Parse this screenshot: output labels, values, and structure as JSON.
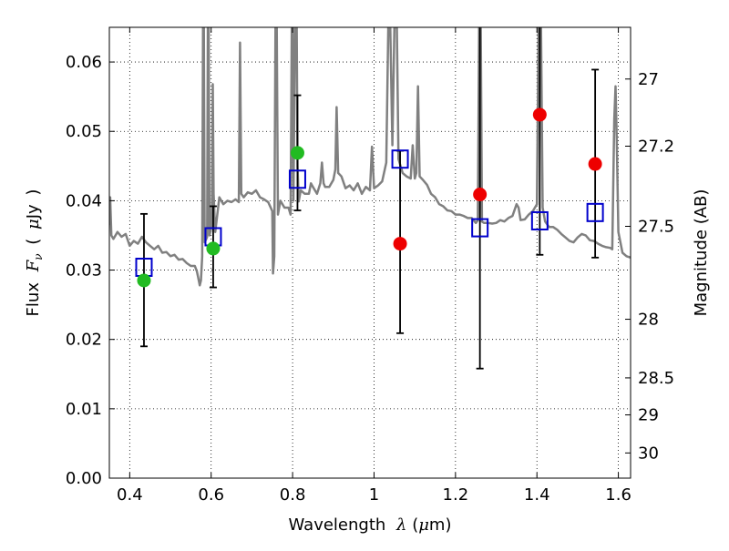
{
  "chart_data": {
    "type": "scatter",
    "x_axis": {
      "label_parts": [
        "Wavelength",
        "λ",
        "(",
        "μ",
        "m)"
      ],
      "lim": [
        0.35,
        1.63
      ],
      "ticks": [
        0.4,
        0.6,
        0.8,
        1.0,
        1.2,
        1.4,
        1.6
      ],
      "tick_labels": [
        "0.4",
        "0.6",
        "0.8",
        "1",
        "1.2",
        "1.4",
        "1.6"
      ]
    },
    "y_axis": {
      "label_parts": [
        "Flux",
        "F",
        "ν",
        "(",
        "μ",
        "Jy",
        ")"
      ],
      "lim": [
        0.0,
        0.065
      ],
      "ticks": [
        0.0,
        0.01,
        0.02,
        0.03,
        0.04,
        0.05,
        0.06
      ],
      "tick_labels": [
        "0.00",
        "0.01",
        "0.02",
        "0.03",
        "0.04",
        "0.05",
        "0.06"
      ]
    },
    "y2_axis": {
      "label": "Magnitude (AB)",
      "ticks": [
        {
          "mag": 27,
          "label": "27"
        },
        {
          "mag": 27.2,
          "label": "27.2"
        },
        {
          "mag": 27.5,
          "label": "27.5"
        },
        {
          "mag": 28,
          "label": "28"
        },
        {
          "mag": 28.5,
          "label": "28.5"
        },
        {
          "mag": 29,
          "label": "29"
        },
        {
          "mag": 30,
          "label": "30"
        }
      ]
    },
    "grid": true,
    "series": [
      {
        "marker": "circle",
        "color": "#22bb22",
        "x": [
          0.435,
          0.605,
          0.812
        ],
        "y": [
          0.0285,
          0.0331,
          0.0469
        ]
      },
      {
        "marker": "circle",
        "color": "#ee0000",
        "x": [
          1.064,
          1.26,
          1.407,
          1.543
        ],
        "y": [
          0.0338,
          0.0409,
          0.0524,
          0.0453
        ]
      },
      {
        "marker": "open-square",
        "color": "#0000cc",
        "x": [
          0.435,
          0.605,
          0.812,
          1.064,
          1.26,
          1.407,
          1.543
        ],
        "y": [
          0.0304,
          0.0348,
          0.0431,
          0.046,
          0.0361,
          0.0371,
          0.0383
        ],
        "err_low": [
          0.019,
          0.0275,
          0.0386,
          0.0209,
          0.0158,
          0.0322,
          0.0318
        ],
        "err_high": [
          0.0381,
          0.0392,
          0.0552,
          0.0472,
          0.065,
          0.065,
          0.0589
        ]
      }
    ],
    "model_spectrum": {
      "color": "#808080",
      "points": [
        [
          0.35,
          0.0365
        ],
        [
          0.352,
          0.0405
        ],
        [
          0.355,
          0.035
        ],
        [
          0.36,
          0.0345
        ],
        [
          0.37,
          0.0355
        ],
        [
          0.38,
          0.0348
        ],
        [
          0.39,
          0.0352
        ],
        [
          0.4,
          0.0335
        ],
        [
          0.41,
          0.0342
        ],
        [
          0.42,
          0.0338
        ],
        [
          0.43,
          0.0348
        ],
        [
          0.44,
          0.034
        ],
        [
          0.45,
          0.0335
        ],
        [
          0.46,
          0.033
        ],
        [
          0.47,
          0.0335
        ],
        [
          0.48,
          0.0325
        ],
        [
          0.49,
          0.0326
        ],
        [
          0.5,
          0.032
        ],
        [
          0.51,
          0.0322
        ],
        [
          0.52,
          0.0315
        ],
        [
          0.53,
          0.0316
        ],
        [
          0.54,
          0.031
        ],
        [
          0.55,
          0.0306
        ],
        [
          0.56,
          0.0306
        ],
        [
          0.565,
          0.0298
        ],
        [
          0.568,
          0.029
        ],
        [
          0.572,
          0.0278
        ],
        [
          0.575,
          0.0285
        ],
        [
          0.578,
          0.032
        ],
        [
          0.58,
          0.065
        ],
        [
          0.582,
          0.065
        ],
        [
          0.584,
          0.034
        ],
        [
          0.588,
          0.0345
        ],
        [
          0.59,
          0.0348
        ],
        [
          0.592,
          0.065
        ],
        [
          0.594,
          0.065
        ],
        [
          0.596,
          0.035
        ],
        [
          0.6,
          0.036
        ],
        [
          0.602,
          0.0395
        ],
        [
          0.604,
          0.0568
        ],
        [
          0.606,
          0.041
        ],
        [
          0.61,
          0.0355
        ],
        [
          0.62,
          0.0405
        ],
        [
          0.63,
          0.0395
        ],
        [
          0.64,
          0.04
        ],
        [
          0.65,
          0.0398
        ],
        [
          0.66,
          0.0402
        ],
        [
          0.668,
          0.0398
        ],
        [
          0.671,
          0.0628
        ],
        [
          0.674,
          0.041
        ],
        [
          0.68,
          0.0405
        ],
        [
          0.69,
          0.0412
        ],
        [
          0.7,
          0.041
        ],
        [
          0.71,
          0.0415
        ],
        [
          0.72,
          0.0405
        ],
        [
          0.73,
          0.0402
        ],
        [
          0.74,
          0.0398
        ],
        [
          0.75,
          0.0385
        ],
        [
          0.752,
          0.0295
        ],
        [
          0.755,
          0.032
        ],
        [
          0.758,
          0.065
        ],
        [
          0.761,
          0.065
        ],
        [
          0.764,
          0.038
        ],
        [
          0.77,
          0.04
        ],
        [
          0.78,
          0.039
        ],
        [
          0.79,
          0.039
        ],
        [
          0.795,
          0.038
        ],
        [
          0.798,
          0.065
        ],
        [
          0.8,
          0.065
        ],
        [
          0.802,
          0.04
        ],
        [
          0.806,
          0.065
        ],
        [
          0.81,
          0.065
        ],
        [
          0.812,
          0.045
        ],
        [
          0.815,
          0.0399
        ],
        [
          0.82,
          0.0415
        ],
        [
          0.83,
          0.041
        ],
        [
          0.84,
          0.041
        ],
        [
          0.845,
          0.0425
        ],
        [
          0.85,
          0.042
        ],
        [
          0.86,
          0.041
        ],
        [
          0.868,
          0.0425
        ],
        [
          0.872,
          0.0455
        ],
        [
          0.876,
          0.0425
        ],
        [
          0.88,
          0.042
        ],
        [
          0.89,
          0.042
        ],
        [
          0.9,
          0.043
        ],
        [
          0.905,
          0.0445
        ],
        [
          0.908,
          0.0535
        ],
        [
          0.912,
          0.044
        ],
        [
          0.92,
          0.0435
        ],
        [
          0.93,
          0.0418
        ],
        [
          0.94,
          0.0422
        ],
        [
          0.95,
          0.0415
        ],
        [
          0.96,
          0.0425
        ],
        [
          0.97,
          0.041
        ],
        [
          0.98,
          0.042
        ],
        [
          0.99,
          0.0415
        ],
        [
          0.995,
          0.0478
        ],
        [
          1.0,
          0.0418
        ],
        [
          1.01,
          0.0422
        ],
        [
          1.02,
          0.0428
        ],
        [
          1.03,
          0.0455
        ],
        [
          1.035,
          0.065
        ],
        [
          1.04,
          0.065
        ],
        [
          1.045,
          0.048
        ],
        [
          1.05,
          0.065
        ],
        [
          1.056,
          0.065
        ],
        [
          1.06,
          0.046
        ],
        [
          1.07,
          0.044
        ],
        [
          1.08,
          0.0435
        ],
        [
          1.09,
          0.0432
        ],
        [
          1.095,
          0.048
        ],
        [
          1.1,
          0.0432
        ],
        [
          1.104,
          0.044
        ],
        [
          1.108,
          0.0565
        ],
        [
          1.112,
          0.0435
        ],
        [
          1.12,
          0.043
        ],
        [
          1.13,
          0.0423
        ],
        [
          1.14,
          0.041
        ],
        [
          1.15,
          0.0405
        ],
        [
          1.16,
          0.0395
        ],
        [
          1.17,
          0.0392
        ],
        [
          1.18,
          0.0386
        ],
        [
          1.19,
          0.0385
        ],
        [
          1.2,
          0.038
        ],
        [
          1.21,
          0.038
        ],
        [
          1.22,
          0.0378
        ],
        [
          1.23,
          0.0375
        ],
        [
          1.24,
          0.0375
        ],
        [
          1.25,
          0.0368
        ],
        [
          1.255,
          0.0372
        ],
        [
          1.258,
          0.065
        ],
        [
          1.262,
          0.065
        ],
        [
          1.265,
          0.037
        ],
        [
          1.27,
          0.0368
        ],
        [
          1.28,
          0.0368
        ],
        [
          1.29,
          0.0367
        ],
        [
          1.3,
          0.0368
        ],
        [
          1.31,
          0.0372
        ],
        [
          1.32,
          0.037
        ],
        [
          1.33,
          0.0375
        ],
        [
          1.34,
          0.0378
        ],
        [
          1.35,
          0.0395
        ],
        [
          1.355,
          0.039
        ],
        [
          1.36,
          0.0372
        ],
        [
          1.37,
          0.0373
        ],
        [
          1.38,
          0.038
        ],
        [
          1.39,
          0.0385
        ],
        [
          1.4,
          0.0395
        ],
        [
          1.404,
          0.065
        ],
        [
          1.41,
          0.065
        ],
        [
          1.414,
          0.039
        ],
        [
          1.42,
          0.037
        ],
        [
          1.43,
          0.0362
        ],
        [
          1.44,
          0.0362
        ],
        [
          1.45,
          0.0358
        ],
        [
          1.46,
          0.0352
        ],
        [
          1.47,
          0.0347
        ],
        [
          1.48,
          0.0342
        ],
        [
          1.49,
          0.034
        ],
        [
          1.5,
          0.0347
        ],
        [
          1.51,
          0.0352
        ],
        [
          1.52,
          0.035
        ],
        [
          1.53,
          0.0343
        ],
        [
          1.54,
          0.0342
        ],
        [
          1.55,
          0.0338
        ],
        [
          1.56,
          0.0335
        ],
        [
          1.57,
          0.0333
        ],
        [
          1.58,
          0.0332
        ],
        [
          1.585,
          0.033
        ],
        [
          1.59,
          0.0518
        ],
        [
          1.593,
          0.0565
        ],
        [
          1.596,
          0.049
        ],
        [
          1.6,
          0.0355
        ],
        [
          1.61,
          0.0325
        ],
        [
          1.62,
          0.032
        ],
        [
          1.63,
          0.0318
        ]
      ]
    }
  }
}
